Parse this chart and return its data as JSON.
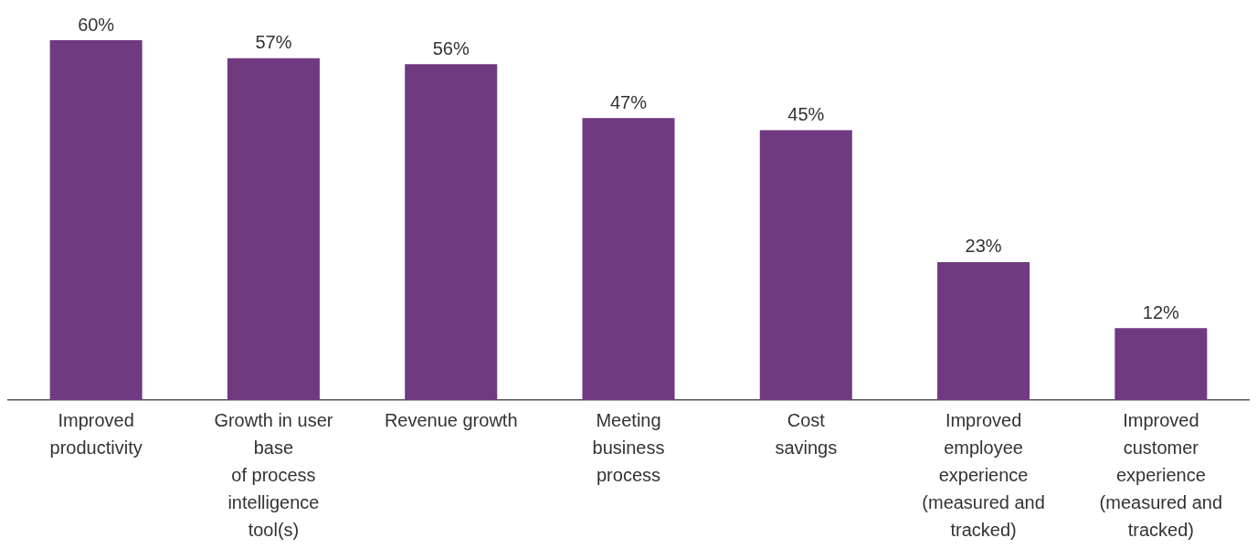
{
  "chart_data": {
    "type": "bar",
    "categories": [
      "Improved\nproductivity",
      "Growth in user\nbase\nof process\nintelligence\ntool(s)",
      "Revenue growth",
      "Meeting\nbusiness\nprocess",
      "Cost\nsavings",
      "Improved\nemployee\nexperience\n(measured and\ntracked)",
      "Improved\ncustomer\nexperience\n(measured and\ntracked)"
    ],
    "values": [
      60,
      57,
      56,
      47,
      45,
      23,
      12
    ],
    "value_labels": [
      "60%",
      "57%",
      "56%",
      "47%",
      "45%",
      "23%",
      "12%"
    ],
    "color": "#6f3a80",
    "grid": false,
    "legend": false
  }
}
